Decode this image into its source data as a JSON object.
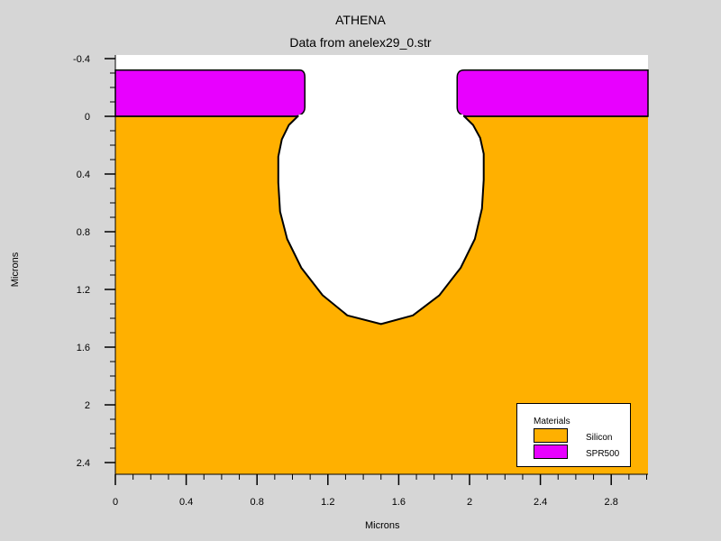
{
  "chart_data": {
    "type": "area",
    "title": "ATHENA",
    "subtitle": "Data from anelex29_0.str",
    "xlabel": "Microns",
    "ylabel": "Microns",
    "xlim": [
      0,
      3.0
    ],
    "ylim": [
      -0.4,
      2.5
    ],
    "y_axis_inverted": true,
    "xticks": [
      0,
      0.4,
      0.8,
      1.2,
      1.6,
      2,
      2.4,
      2.8
    ],
    "yticks": [
      -0.4,
      0,
      0.4,
      0.8,
      1.2,
      1.6,
      2,
      2.4
    ],
    "xtick_labels": [
      "0",
      "0.4",
      "0.8",
      "1.2",
      "1.6",
      "2",
      "2.4",
      "2.8"
    ],
    "ytick_labels": [
      "-0.4",
      "0",
      "0.4",
      "0.8",
      "1.2",
      "1.6",
      "2",
      "2.4"
    ],
    "materials": [
      {
        "name": "Silicon",
        "color": "#ffb000"
      },
      {
        "name": "SPR500",
        "color": "#e800ff"
      }
    ],
    "regions": {
      "spr500_top": -0.32,
      "spr500_bottom": 0.0,
      "spr500_left_block": [
        0,
        1.07
      ],
      "spr500_right_block": [
        1.93,
        3.0
      ],
      "cavity_outline": [
        [
          1.03,
          0.0
        ],
        [
          0.98,
          0.06
        ],
        [
          0.94,
          0.16
        ],
        [
          0.92,
          0.28
        ],
        [
          0.92,
          0.46
        ],
        [
          0.93,
          0.66
        ],
        [
          0.97,
          0.85
        ],
        [
          1.05,
          1.05
        ],
        [
          1.17,
          1.24
        ],
        [
          1.31,
          1.38
        ],
        [
          1.5,
          1.44
        ],
        [
          1.68,
          1.38
        ],
        [
          1.83,
          1.24
        ],
        [
          1.95,
          1.05
        ],
        [
          2.03,
          0.85
        ],
        [
          2.07,
          0.64
        ],
        [
          2.08,
          0.44
        ],
        [
          2.08,
          0.26
        ],
        [
          2.06,
          0.15
        ],
        [
          2.02,
          0.06
        ],
        [
          1.97,
          0.0
        ]
      ]
    },
    "legend": {
      "title": "Materials",
      "placement": "bottom-right",
      "entries": [
        "Silicon",
        "SPR500"
      ]
    }
  },
  "colors": {
    "background": "#d6d6d6",
    "plot_background": "#ffffff"
  }
}
